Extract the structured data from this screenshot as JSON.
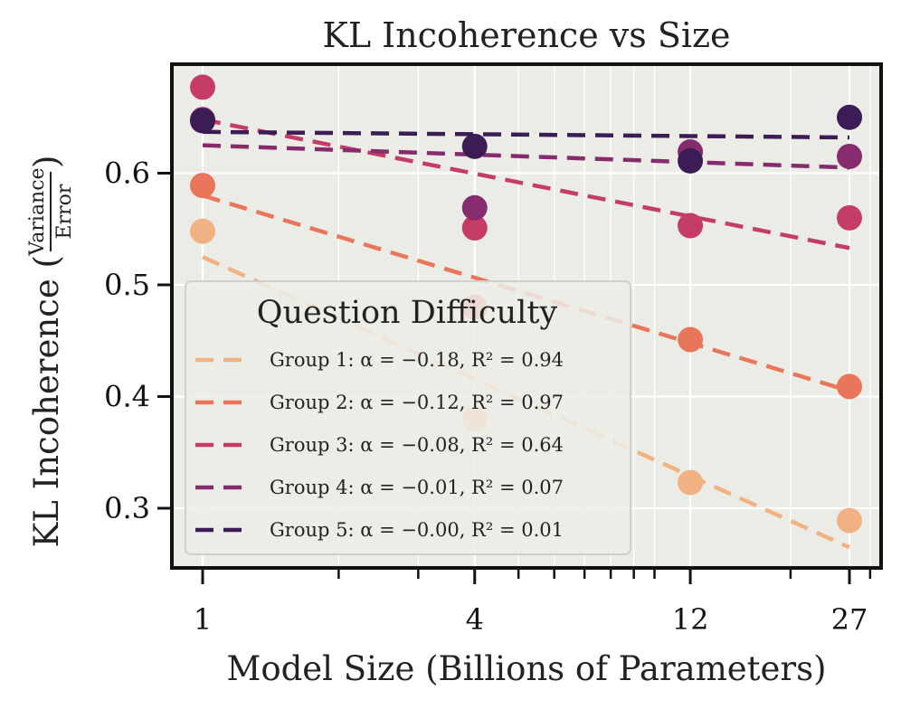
{
  "chart_data": {
    "type": "scatter",
    "title": "KL Incoherence vs Size",
    "xlabel": "Model Size (Billions of Parameters)",
    "ylabel_main": "KL Incoherence (",
    "ylabel_frac_num": "Variance",
    "ylabel_frac_den": "Error",
    "ylabel_close": ")",
    "x_scale": "log",
    "xlim": [
      0.9,
      30
    ],
    "ylim": [
      0.25,
      0.7
    ],
    "x_ticks": [
      1,
      4,
      12,
      27
    ],
    "x_tick_labels": [
      "1",
      "4",
      "12",
      "27"
    ],
    "y_ticks": [
      0.3,
      0.4,
      0.5,
      0.6
    ],
    "y_tick_labels": [
      "0.3",
      "0.4",
      "0.5",
      "0.6"
    ],
    "legend_title": "Question Difficulty",
    "legend_position": "lower-left",
    "grid": true,
    "series": [
      {
        "name": "Group 1",
        "label": "Group 1: α = −0.18, R² = 0.94",
        "color": "#F0B283",
        "x": [
          1,
          4,
          12,
          27
        ],
        "y": [
          0.548,
          0.38,
          0.323,
          0.289
        ],
        "fit": [
          0.525,
          0.265
        ]
      },
      {
        "name": "Group 2",
        "label": "Group 2: α = −0.12, R² = 0.97",
        "color": "#E9765A",
        "x": [
          1,
          4,
          12,
          27
        ],
        "y": [
          0.589,
          0.48,
          0.451,
          0.409
        ],
        "fit": [
          0.58,
          0.405
        ]
      },
      {
        "name": "Group 3",
        "label": "Group 3: α = −0.08, R² = 0.64",
        "color": "#C53C64",
        "x": [
          1,
          4,
          12,
          27
        ],
        "y": [
          0.677,
          0.551,
          0.553,
          0.56
        ],
        "fit": [
          0.648,
          0.533
        ]
      },
      {
        "name": "Group 4",
        "label": "Group 4: α = −0.01, R² = 0.07",
        "color": "#862B6E",
        "x": [
          1,
          4,
          12,
          27
        ],
        "y": [
          0.648,
          0.569,
          0.619,
          0.615
        ],
        "fit": [
          0.625,
          0.605
        ]
      },
      {
        "name": "Group 5",
        "label": "Group 5: α = −0.00, R² = 0.01",
        "color": "#3C1C55",
        "x": [
          1,
          4,
          12,
          27
        ],
        "y": [
          0.647,
          0.624,
          0.611,
          0.65
        ],
        "fit": [
          0.637,
          0.632
        ]
      }
    ]
  }
}
